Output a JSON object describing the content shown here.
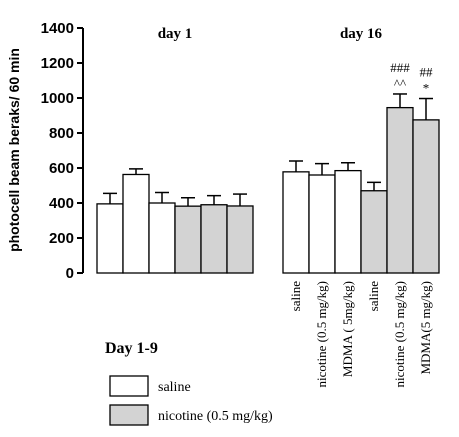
{
  "colors": {
    "saline": "#ffffff",
    "nicotine": "#d3d3d3",
    "stroke": "#000000"
  },
  "chart_data": {
    "type": "bar",
    "ylabel": "photocell beam beraks/ 60 min",
    "ylim": [
      0,
      1400
    ],
    "yticks": [
      0,
      200,
      400,
      600,
      800,
      1000,
      1200,
      1400
    ],
    "grid": false,
    "error_bars": true,
    "groups": [
      {
        "label": "day 1",
        "bars": [
          {
            "pretreatment": "saline",
            "value": 395,
            "error": 60
          },
          {
            "pretreatment": "saline",
            "value": 563,
            "error": 32
          },
          {
            "pretreatment": "saline",
            "value": 400,
            "error": 60
          },
          {
            "pretreatment": "nicotine",
            "value": 382,
            "error": 48
          },
          {
            "pretreatment": "nicotine",
            "value": 390,
            "error": 52
          },
          {
            "pretreatment": "nicotine",
            "value": 383,
            "error": 68
          }
        ]
      },
      {
        "label": "day 16",
        "bars": [
          {
            "pretreatment": "saline",
            "value": 578,
            "error": 62,
            "category": "saline"
          },
          {
            "pretreatment": "saline",
            "value": 560,
            "error": 65,
            "category": "nicotine (0.5 mg/kg)"
          },
          {
            "pretreatment": "saline",
            "value": 585,
            "error": 45,
            "category": "MDMA ( 5mg/kg)"
          },
          {
            "pretreatment": "nicotine",
            "value": 470,
            "error": 48,
            "category": "saline"
          },
          {
            "pretreatment": "nicotine",
            "value": 945,
            "error": 78,
            "category": "nicotine (0.5 mg/kg)",
            "annotations": [
              "###",
              "^^"
            ]
          },
          {
            "pretreatment": "nicotine",
            "value": 875,
            "error": 122,
            "category": "MDMA(5 mg/kg)",
            "annotations": [
              "##",
              "*"
            ]
          }
        ]
      }
    ],
    "legend": {
      "title": "Day 1-9",
      "position": "bottom-left",
      "entries": [
        {
          "label": "saline",
          "color_key": "saline"
        },
        {
          "label": "nicotine (0.5 mg/kg)",
          "color_key": "nicotine"
        }
      ]
    }
  }
}
